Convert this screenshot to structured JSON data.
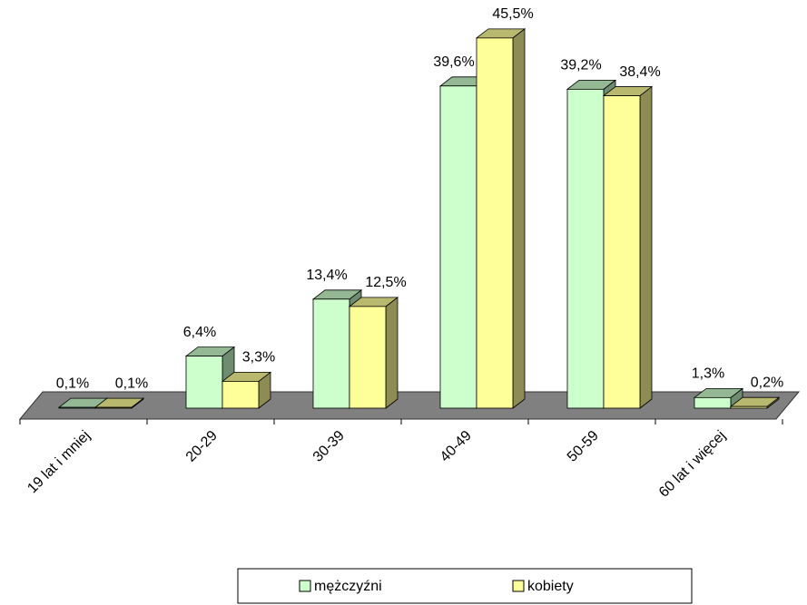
{
  "chart_data": {
    "type": "bar3d",
    "categories": [
      "19 lat i mniej",
      "20-29",
      "30-39",
      "40-49",
      "50-59",
      "60 lat i więcej"
    ],
    "series": [
      {
        "name": "mężczyźni",
        "color": "#ccffcc",
        "values": [
          0.1,
          6.4,
          13.4,
          39.6,
          39.2,
          1.3
        ],
        "value_labels": [
          "0,1%",
          "6,4%",
          "13,4%",
          "39,6%",
          "39,2%",
          "1,3%"
        ]
      },
      {
        "name": "kobiety",
        "color": "#ffff99",
        "values": [
          0.1,
          3.3,
          12.5,
          45.5,
          38.4,
          0.2
        ],
        "value_labels": [
          "0,1%",
          "3,3%",
          "12,5%",
          "45,5%",
          "38,4%",
          "0,2%"
        ]
      }
    ],
    "legend": "bottom"
  }
}
